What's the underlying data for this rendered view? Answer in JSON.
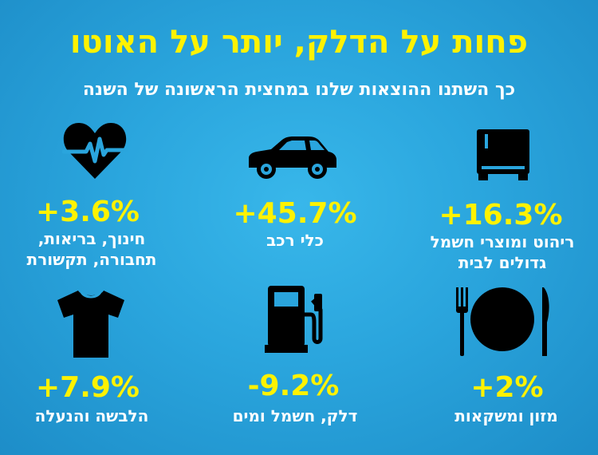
{
  "title": "פחות על הדלק, יותר על האוטו",
  "subtitle": "כך השתנו ההוצאות שלנו במחצית הראשונה של השנה",
  "colors": {
    "accent": "#fff200",
    "text": "#ffffff",
    "icon": "#000000",
    "background": "#2aa5dd"
  },
  "items": [
    {
      "icon": "heart-pulse-icon",
      "value": "+3.6%",
      "label_line1": "חינוך, בריאות,",
      "label_line2": "תחבורה, תקשורת"
    },
    {
      "icon": "car-icon",
      "value": "+45.7%",
      "label_line1": "כלי רכב",
      "label_line2": ""
    },
    {
      "icon": "refrigerator-icon",
      "value": "+16.3%",
      "label_line1": "ריהוט ומוצרי חשמל",
      "label_line2": "גדולים לבית"
    },
    {
      "icon": "tshirt-icon",
      "value": "+7.9%",
      "label_line1": "הלבשה והנעלה",
      "label_line2": ""
    },
    {
      "icon": "fuel-pump-icon",
      "value": "-9.2%",
      "label_line1": "דלק, חשמל ומים",
      "label_line2": ""
    },
    {
      "icon": "plate-cutlery-icon",
      "value": "+2%",
      "label_line1": "מזון ומשקאות",
      "label_line2": ""
    }
  ]
}
